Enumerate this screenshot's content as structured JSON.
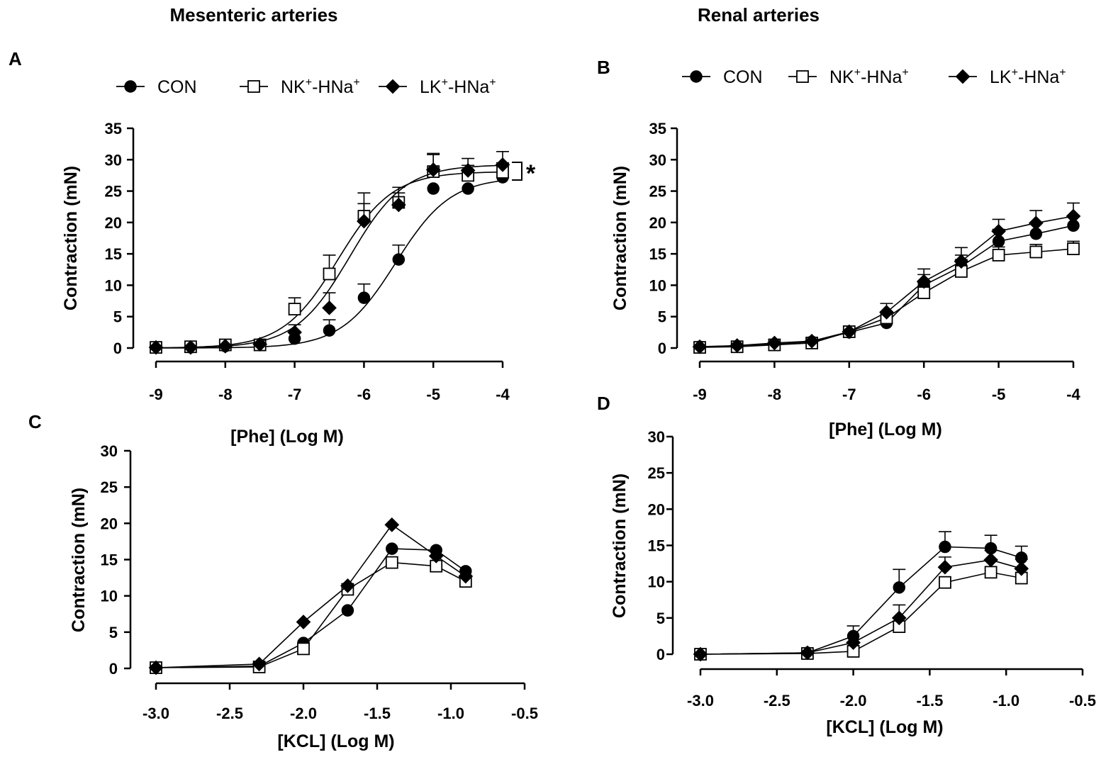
{
  "figure": {
    "column_titles": [
      "Mesenteric arteries",
      "Renal arteries"
    ],
    "significance_mark": "*"
  },
  "legend": {
    "entries": [
      {
        "label": "CON",
        "marker": "filled-circle"
      },
      {
        "label": "NK",
        "sup1": "+",
        "mid": "-HNa",
        "sup2": "+",
        "marker": "open-square"
      },
      {
        "label": "LK",
        "sup1": "+",
        "mid": "-HNa",
        "sup2": "+",
        "marker": "filled-diamond"
      }
    ]
  },
  "colors": {
    "ink": "#000000",
    "background": "#ffffff"
  },
  "chart_data": [
    {
      "panel": "A",
      "type": "line",
      "xlabel": "[Phe] (Log M)",
      "ylabel": "Contraction (mN)",
      "xlim": [
        -9,
        -4
      ],
      "ylim": [
        0,
        35
      ],
      "xticks": [
        "-9",
        "-8",
        "-7",
        "-6",
        "-5",
        "-4"
      ],
      "yticks": [
        "0",
        "5",
        "10",
        "15",
        "20",
        "25",
        "30",
        "35"
      ],
      "curve_style": "sigmoid-fit",
      "x": [
        -9,
        -8.5,
        -8,
        -7.5,
        -7,
        -6.5,
        -6,
        -5.5,
        -5,
        -4.5,
        -4
      ],
      "series": [
        {
          "name": "CON",
          "marker": "filled-circle",
          "values": [
            0.1,
            0.1,
            0.3,
            0.5,
            1.5,
            2.8,
            8.0,
            14.1,
            25.4,
            25.4,
            27.2
          ],
          "errors": [
            0,
            0,
            0,
            0,
            0,
            1.7,
            2.2,
            2.3,
            0,
            0,
            0
          ]
        },
        {
          "name": "NK+-HNa+",
          "marker": "open-square",
          "values": [
            0.1,
            0.2,
            0.5,
            0.5,
            6.2,
            11.8,
            21.0,
            23.2,
            28.1,
            27.5,
            28.0
          ],
          "errors": [
            0,
            0,
            0,
            0,
            1.8,
            3.0,
            3.7,
            2.4,
            2.7,
            1.6,
            1.5
          ]
        },
        {
          "name": "LK+-HNa+",
          "marker": "filled-diamond",
          "values": [
            0.1,
            0.1,
            0.3,
            0.6,
            2.5,
            6.4,
            20.2,
            22.8,
            28.4,
            28.3,
            29.2
          ],
          "errors": [
            0,
            0,
            0,
            0,
            1.2,
            2.4,
            2.8,
            1.9,
            2.6,
            1.9,
            2.1
          ]
        }
      ]
    },
    {
      "panel": "B",
      "type": "line",
      "xlabel": "[Phe] (Log M)",
      "ylabel": "Contraction (mN)",
      "xlim": [
        -9,
        -4
      ],
      "ylim": [
        0,
        35
      ],
      "xticks": [
        "-9",
        "-8",
        "-7",
        "-6",
        "-5",
        "-4"
      ],
      "yticks": [
        "0",
        "5",
        "10",
        "15",
        "20",
        "25",
        "30",
        "35"
      ],
      "curve_style": "connected",
      "x": [
        -9,
        -8.5,
        -8,
        -7.5,
        -7,
        -6.5,
        -6,
        -5.5,
        -5,
        -4.5,
        -4
      ],
      "series": [
        {
          "name": "CON",
          "marker": "filled-circle",
          "values": [
            0.2,
            0.3,
            0.6,
            1.0,
            2.5,
            4.0,
            10.0,
            13.0,
            17.0,
            18.2,
            19.5
          ],
          "errors": [
            0,
            0,
            0,
            0,
            0,
            0.8,
            1.7,
            1.8,
            1.9,
            1.7,
            1.6
          ]
        },
        {
          "name": "NK+-HNa+",
          "marker": "open-square",
          "values": [
            0.1,
            0.2,
            0.5,
            0.8,
            2.6,
            4.8,
            8.8,
            12.2,
            14.8,
            15.3,
            15.8
          ],
          "errors": [
            0,
            0,
            0,
            0,
            0,
            1.0,
            1.6,
            1.9,
            1.3,
            1.2,
            1.2
          ]
        },
        {
          "name": "LK+-HNa+",
          "marker": "filled-diamond",
          "values": [
            0.2,
            0.4,
            0.8,
            1.1,
            2.6,
            5.7,
            10.6,
            13.8,
            18.6,
            19.9,
            21.0
          ],
          "errors": [
            0,
            0,
            0,
            0,
            0,
            1.4,
            2.0,
            2.2,
            1.9,
            2.0,
            2.1
          ]
        }
      ]
    },
    {
      "panel": "C",
      "type": "line",
      "xlabel": "[KCL] (Log M)",
      "ylabel": "Contraction (mN)",
      "xlim": [
        -3.0,
        -0.5
      ],
      "ylim": [
        0,
        30
      ],
      "xticks": [
        "-3.0",
        "-2.5",
        "-2.0",
        "-1.5",
        "-1.0",
        "-0.5"
      ],
      "yticks": [
        "0",
        "5",
        "10",
        "15",
        "20",
        "25",
        "30"
      ],
      "curve_style": "connected",
      "x": [
        -3.0,
        -2.3,
        -2.0,
        -1.7,
        -1.4,
        -1.1,
        -0.9
      ],
      "series": [
        {
          "name": "CON",
          "marker": "filled-circle",
          "values": [
            0.1,
            0.3,
            3.5,
            8.0,
            16.5,
            16.3,
            13.4
          ],
          "errors": [
            0,
            0,
            0,
            0,
            0,
            0,
            0
          ]
        },
        {
          "name": "NK+-HNa+",
          "marker": "open-square",
          "values": [
            0.1,
            0.2,
            2.7,
            10.9,
            14.6,
            14.1,
            12.0
          ],
          "errors": [
            0,
            0,
            0,
            0,
            0,
            0,
            0
          ]
        },
        {
          "name": "LK+-HNa+",
          "marker": "filled-diamond",
          "values": [
            0.1,
            0.6,
            6.4,
            11.4,
            19.8,
            15.5,
            12.7
          ],
          "errors": [
            0,
            0,
            0,
            0,
            0,
            0,
            0
          ]
        }
      ]
    },
    {
      "panel": "D",
      "type": "line",
      "xlabel": "[KCL] (Log M)",
      "ylabel": "Contraction (mN)",
      "xlim": [
        -3.0,
        -0.5
      ],
      "ylim": [
        0,
        30
      ],
      "xticks": [
        "-3.0",
        "-2.5",
        "-2.0",
        "-1.5",
        "-1.0",
        "-0.5"
      ],
      "yticks": [
        "0",
        "5",
        "10",
        "15",
        "20",
        "25",
        "30"
      ],
      "curve_style": "connected",
      "x": [
        -3.0,
        -2.3,
        -2.0,
        -1.7,
        -1.4,
        -1.1,
        -0.9
      ],
      "series": [
        {
          "name": "CON",
          "marker": "filled-circle",
          "values": [
            0.0,
            0.2,
            2.5,
            9.2,
            14.8,
            14.6,
            13.3
          ],
          "errors": [
            0,
            0,
            1.4,
            2.5,
            2.1,
            1.8,
            1.6
          ]
        },
        {
          "name": "NK+-HNa+",
          "marker": "open-square",
          "values": [
            0.0,
            0.1,
            0.4,
            3.8,
            9.9,
            11.3,
            10.5
          ],
          "errors": [
            0,
            0,
            0,
            0,
            0,
            0,
            0
          ]
        },
        {
          "name": "LK+-HNa+",
          "marker": "filled-diamond",
          "values": [
            0.0,
            0.2,
            1.6,
            5.0,
            12.0,
            13.0,
            11.8
          ],
          "errors": [
            0,
            0,
            0,
            1.8,
            1.4,
            1.3,
            1.3
          ]
        }
      ]
    }
  ]
}
